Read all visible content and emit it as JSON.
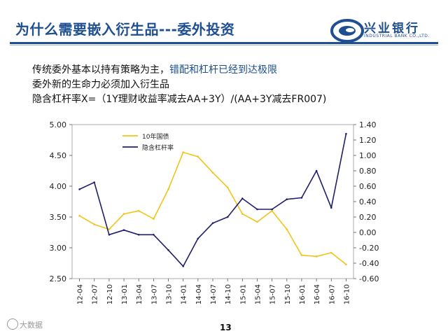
{
  "slide": {
    "title": "为什么需要嵌入衍生品---委外投资",
    "page_number": "13",
    "watermark": "大数据",
    "logo": {
      "name": "兴业银行",
      "subtitle": "INDUSTRIAL BANK CO.,LTD.",
      "color": "#1d4f91"
    }
  },
  "bullets": {
    "line1_prefix": "传统委外基本以持有策略为主，",
    "line1_accent": "错配和杠杆已经到达极限",
    "line2": "委外新的生命力必须加入衍生品",
    "line3": "隐含杠杆率X=（1Y理财收益率减去AA+3Y）/(AA+3Y减去FR007)"
  },
  "chart_data": {
    "type": "line",
    "x": [
      "12-04",
      "12-07",
      "12-10",
      "13-01",
      "13-04",
      "13-07",
      "13-10",
      "14-01",
      "14-04",
      "14-07",
      "14-10",
      "15-01",
      "15-04",
      "15-07",
      "15-10",
      "16-01",
      "16-04",
      "16-07",
      "16-10"
    ],
    "series": [
      {
        "name": "10年国债",
        "axis": "left",
        "color": "#f0c419",
        "values": [
          3.52,
          3.38,
          3.3,
          3.55,
          3.6,
          3.47,
          3.95,
          4.55,
          4.48,
          4.22,
          3.98,
          3.55,
          3.42,
          3.6,
          3.3,
          2.88,
          2.86,
          2.92,
          2.73
        ]
      },
      {
        "name": "隐含杠杆率",
        "axis": "right",
        "color": "#1f1f6b",
        "values": [
          0.56,
          0.65,
          -0.03,
          0.03,
          -0.03,
          -0.03,
          -0.23,
          -0.44,
          -0.08,
          0.12,
          0.2,
          0.44,
          0.3,
          0.3,
          0.43,
          0.45,
          0.8,
          0.32,
          1.28
        ]
      }
    ],
    "y_left": {
      "ylim": [
        2.5,
        5.0
      ],
      "ticks": [
        "2.50",
        "3.00",
        "3.50",
        "4.00",
        "4.50",
        "5.00"
      ]
    },
    "y_right": {
      "ylim": [
        -0.6,
        1.4
      ],
      "ticks": [
        "-0.60",
        "-0.40",
        "-0.20",
        "0.00",
        "0.20",
        "0.40",
        "0.60",
        "0.80",
        "1.00",
        "1.20",
        "1.40"
      ]
    },
    "legend_position": "top-left",
    "grid": false
  }
}
